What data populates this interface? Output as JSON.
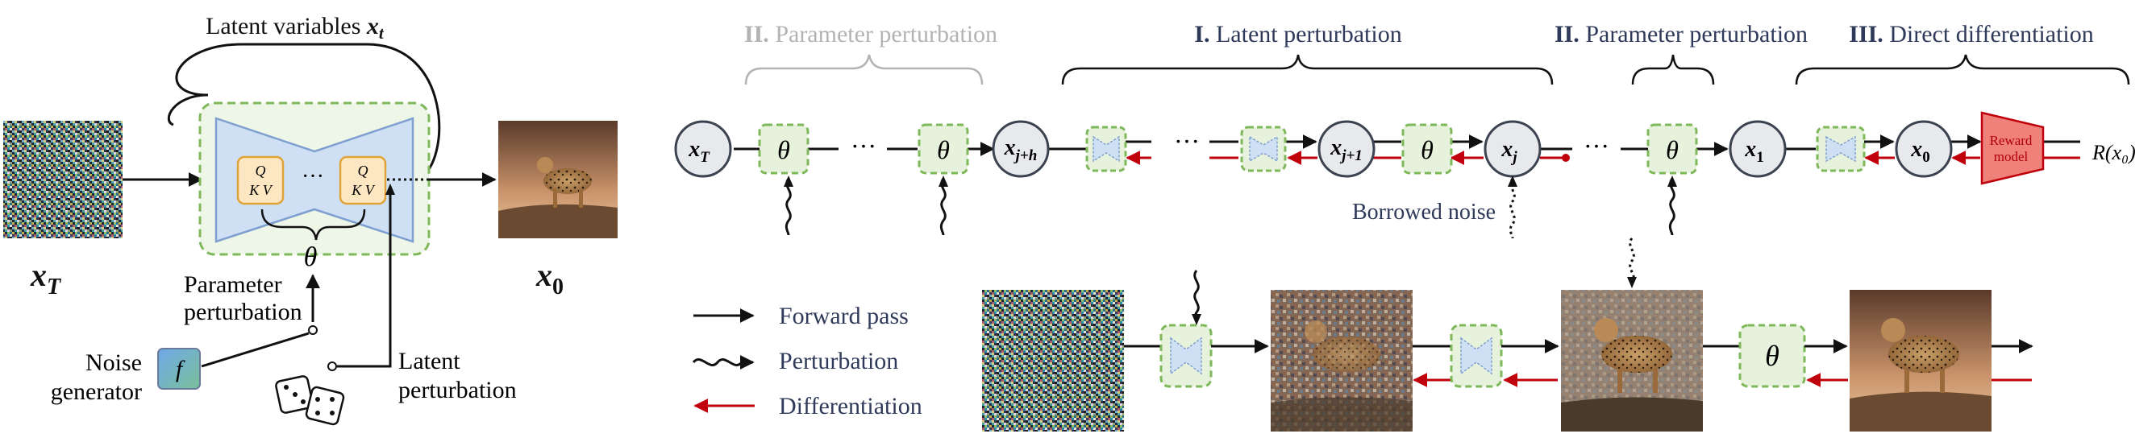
{
  "left_panel": {
    "latent_label": "Latent variables ",
    "latent_symbol": "x",
    "latent_sub": "t",
    "qkv_left_q": "Q",
    "qkv_left_kv": "K V",
    "qkv_right_q": "Q",
    "qkv_right_kv": "K V",
    "dots": "···",
    "theta": "θ",
    "xT_symbol": "x",
    "xT_sub": "T",
    "x0_symbol": "x",
    "x0_sub": "0",
    "param_line1": "Parameter",
    "param_line2": "perturbation",
    "noise_line1": "Noise",
    "noise_line2": "generator",
    "f_symbol": "f",
    "latent_pert_line1": "Latent",
    "latent_pert_line2": "perturbation"
  },
  "pipeline": {
    "section_ii_faded_roman": "II.",
    "section_ii_faded_text": " Parameter perturbation",
    "section_i_roman": "I.",
    "section_i_text": " Latent perturbation",
    "section_ii_roman": "II.",
    "section_ii_text": " Parameter perturbation",
    "section_iii_roman": "III.",
    "section_iii_text": " Direct differentiation",
    "node_xT": "x",
    "node_xT_sub": "T",
    "node_xjh": "x",
    "node_xjh_sub": "j+h",
    "node_xj1": "x",
    "node_xj1_sub": "j+1",
    "node_xj": "x",
    "node_xj_sub": "j",
    "node_x1": "x",
    "node_x1_sub": "1",
    "node_x0": "x",
    "node_x0_sub": "0",
    "theta": "θ",
    "dots": "···",
    "reward_line1": "Reward",
    "reward_line2": "model",
    "reward_output": "R(x₀)",
    "borrowed_noise": "Borrowed noise"
  },
  "legend": {
    "forward": "Forward pass",
    "perturbation": "Perturbation",
    "differentiation": "Differentiation"
  },
  "colors": {
    "node_fill": "#e7e9ed",
    "node_stroke": "#3c4350",
    "green_dash": "#7fb85a",
    "green_fill": "#e6f2dc",
    "unet_fill": "#cfe0f4",
    "unet_stroke": "#7e9fcf",
    "qkv_fill": "#fde7c2",
    "qkv_stroke": "#e0a33a",
    "red": "#c0000c",
    "reward_fill": "#f0807a",
    "faded": "#b3b3b3",
    "navy": "#2f3a5a"
  }
}
